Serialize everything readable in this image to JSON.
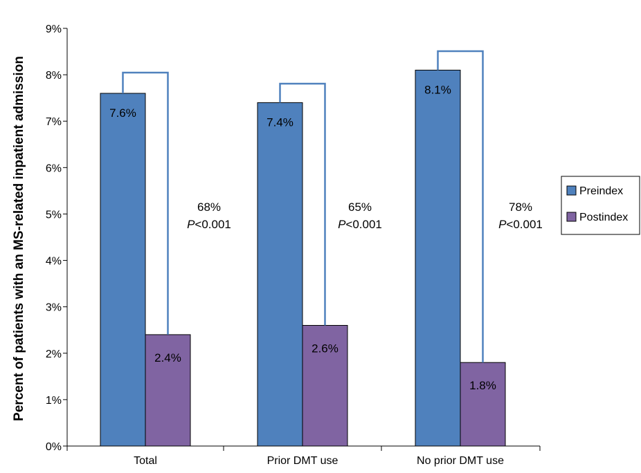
{
  "chart_data": {
    "type": "bar",
    "ylabel": "Percent of patients with an MS-related inpatient admission",
    "xlabel": "",
    "ylim": [
      0,
      9
    ],
    "y_ticks": [
      "0%",
      "1%",
      "2%",
      "3%",
      "4%",
      "5%",
      "6%",
      "7%",
      "8%",
      "9%"
    ],
    "categories": [
      "Total",
      "Prior DMT use",
      "No prior DMT use"
    ],
    "series": [
      {
        "name": "Preindex",
        "color": "#4F81BD",
        "values": [
          7.6,
          7.4,
          8.1
        ],
        "labels": [
          "7.6%",
          "7.4%",
          "8.1%"
        ]
      },
      {
        "name": "Postindex",
        "color": "#8064A2",
        "values": [
          2.4,
          2.6,
          1.8
        ],
        "labels": [
          "2.4%",
          "2.6%",
          "1.8%"
        ]
      }
    ],
    "annotations": [
      {
        "percent": "68%",
        "p_italic": "P",
        "p_rest": "<0.001"
      },
      {
        "percent": "65%",
        "p_italic": "P",
        "p_rest": "<0.001"
      },
      {
        "percent": "78%",
        "p_italic": "P",
        "p_rest": "<0.001"
      }
    ],
    "bracket_color": "#4F81BD",
    "grid": false,
    "legend_position": "right"
  }
}
